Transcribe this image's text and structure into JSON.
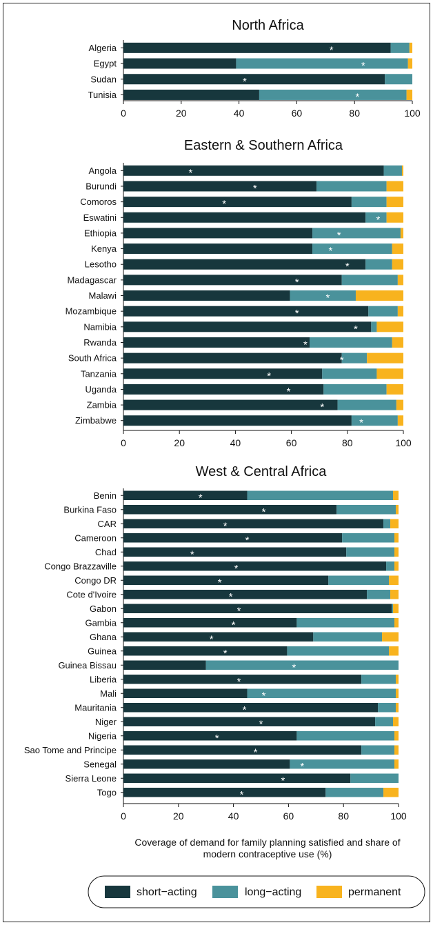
{
  "colors": {
    "short": "#17373d",
    "long": "#4a929b",
    "perm": "#f8b31e"
  },
  "chart_data": [
    {
      "type": "bar",
      "orientation": "horizontal",
      "stacked": true,
      "title": "North Africa",
      "xlim": [
        0,
        100
      ],
      "xticks": [
        "0",
        "20",
        "40",
        "60",
        "80",
        "100"
      ],
      "categories": [
        "Algeria",
        "Egypt",
        "Sudan",
        "Tunisia"
      ],
      "series": [
        {
          "name": "short-acting",
          "values": [
            92.5,
            39,
            90.5,
            47
          ]
        },
        {
          "name": "long-acting",
          "values": [
            6.5,
            59.5,
            9.5,
            51
          ]
        },
        {
          "name": "permanent",
          "values": [
            1,
            1.5,
            0,
            2
          ]
        }
      ],
      "coverage_marker": [
        72,
        83,
        42,
        81
      ]
    },
    {
      "type": "bar",
      "orientation": "horizontal",
      "stacked": true,
      "title": "Eastern & Southern Africa",
      "xlim": [
        0,
        100
      ],
      "xticks": [
        "0",
        "20",
        "40",
        "60",
        "80",
        "100"
      ],
      "categories": [
        "Angola",
        "Burundi",
        "Comoros",
        "Eswatini",
        "Ethiopia",
        "Kenya",
        "Lesotho",
        "Madagascar",
        "Malawi",
        "Mozambique",
        "Namibia",
        "Rwanda",
        "South Africa",
        "Tanzania",
        "Uganda",
        "Zambia",
        "Zimbabwe"
      ],
      "series": [
        {
          "name": "short-acting",
          "values": [
            93,
            69,
            81.5,
            86.5,
            67.5,
            67.5,
            86.5,
            78,
            59.5,
            87.5,
            88.5,
            66.5,
            78,
            71,
            71.5,
            76.5,
            81.5
          ]
        },
        {
          "name": "long-acting",
          "values": [
            6.5,
            25,
            12.5,
            7.5,
            31.5,
            28.5,
            9.5,
            20,
            23.5,
            10.5,
            2,
            29.5,
            9,
            19.5,
            22.5,
            21,
            16.5
          ]
        },
        {
          "name": "permanent",
          "values": [
            0.5,
            6,
            6,
            6,
            1,
            4,
            4,
            2,
            17,
            2,
            9.5,
            4,
            13,
            9.5,
            6,
            2.5,
            2
          ]
        }
      ],
      "coverage_marker": [
        24,
        47,
        36,
        91,
        77,
        74,
        80,
        62,
        73,
        62,
        83,
        65,
        78,
        52,
        59,
        71,
        85
      ]
    },
    {
      "type": "bar",
      "orientation": "horizontal",
      "stacked": true,
      "title": "West & Central Africa",
      "xlim": [
        0,
        100
      ],
      "xticks": [
        "0",
        "20",
        "40",
        "60",
        "80",
        "100"
      ],
      "categories": [
        "Benin",
        "Burkina Faso",
        "CAR",
        "Cameroon",
        "Chad",
        "Congo Brazzaville",
        "Congo DR",
        "Cote d'Ivoire",
        "Gabon",
        "Gambia",
        "Ghana",
        "Guinea",
        "Guinea Bissau",
        "Liberia",
        "Mali",
        "Mauritania",
        "Niger",
        "Nigeria",
        "Sao Tome and Principe",
        "Senegal",
        "Sierra Leone",
        "Togo"
      ],
      "series": [
        {
          "name": "short-acting",
          "values": [
            45,
            77.5,
            94.5,
            79.5,
            81,
            95.5,
            74.5,
            88.5,
            97.5,
            63,
            69,
            59.5,
            30,
            86.5,
            45,
            92.5,
            91.5,
            63,
            86.5,
            60.5,
            82.5,
            73.5
          ]
        },
        {
          "name": "long-acting",
          "values": [
            53,
            21.5,
            2.5,
            19,
            17.5,
            3,
            22,
            8.5,
            0.5,
            35.5,
            25,
            37,
            70,
            12.5,
            54,
            6.5,
            6.5,
            35.5,
            12,
            38,
            17.5,
            21
          ]
        },
        {
          "name": "permanent",
          "values": [
            2,
            1,
            3,
            1.5,
            1.5,
            1.5,
            3.5,
            3,
            2,
            1.5,
            6,
            3.5,
            0,
            1,
            1,
            1,
            2,
            1.5,
            1.5,
            1.5,
            0,
            5.5
          ]
        }
      ],
      "coverage_marker": [
        28,
        51,
        37,
        45,
        25,
        41,
        35,
        39,
        42,
        40,
        32,
        37,
        62,
        42,
        51,
        44,
        50,
        34,
        48,
        65,
        58,
        43
      ]
    }
  ],
  "x_axis_label": [
    "Coverage of demand for family planning satisfied and share of",
    "modern contraceptive use (%)"
  ],
  "legend": [
    {
      "label": "short−acting",
      "color_key": "short"
    },
    {
      "label": "long−acting",
      "color_key": "long"
    },
    {
      "label": "permanent",
      "color_key": "perm"
    }
  ]
}
